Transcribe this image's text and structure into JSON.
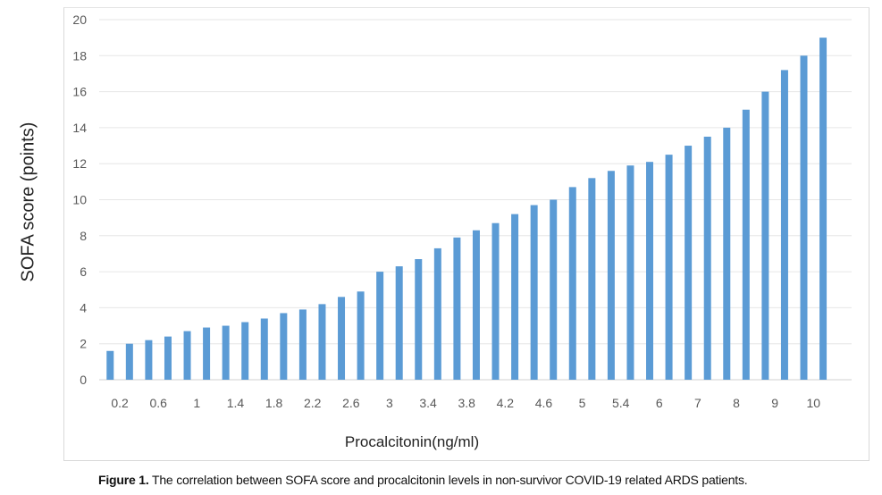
{
  "chart_data": {
    "type": "bar",
    "xlabel": "Procalcitonin(ng/ml)",
    "ylabel": "SOFA score (points)",
    "ylim": [
      0,
      20
    ],
    "yticks": [
      0,
      2,
      4,
      6,
      8,
      10,
      12,
      14,
      16,
      18,
      20
    ],
    "grid": true,
    "legend": "none",
    "bar_color": "#5b9bd5",
    "x_tick_labels": [
      "0.2",
      "0.6",
      "1",
      "1.4",
      "1.8",
      "2.2",
      "2.6",
      "3",
      "3.4",
      "3.8",
      "4.2",
      "4.6",
      "5",
      "5.4",
      "6",
      "7",
      "8",
      "9",
      "10"
    ],
    "values": [
      1.6,
      2.0,
      2.2,
      2.4,
      2.7,
      2.9,
      3.0,
      3.2,
      3.4,
      3.7,
      3.9,
      4.2,
      4.6,
      4.9,
      6.0,
      6.3,
      6.7,
      7.3,
      7.9,
      8.3,
      8.7,
      9.2,
      9.7,
      10.0,
      10.7,
      11.2,
      11.6,
      11.9,
      12.1,
      12.5,
      13.0,
      13.5,
      14.0,
      15.0,
      16.0,
      17.2,
      18.0,
      19.0
    ]
  },
  "caption": {
    "label": "Figure 1.",
    "text": " The correlation between SOFA score and procalcitonin levels in non-survivor COVID-19 related ARDS patients."
  }
}
